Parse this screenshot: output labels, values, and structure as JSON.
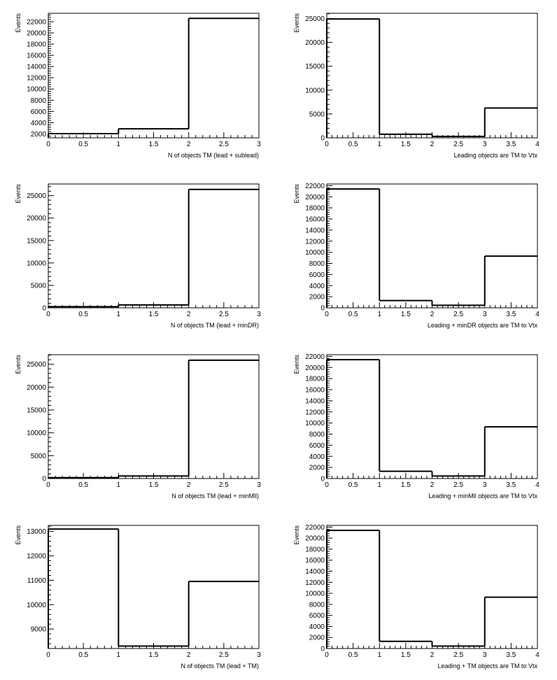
{
  "chart_data": [
    {
      "type": "histogram",
      "xlabel": "N of objects TM (lead + sublead)",
      "ylabel": "Events",
      "bins": [
        0,
        1,
        2,
        3
      ],
      "values": [
        2050,
        2900,
        22600
      ],
      "xlim": [
        0,
        3
      ],
      "ylim": [
        1300,
        23500
      ],
      "xticks": [
        "0",
        "0.5",
        "1",
        "1.5",
        "2",
        "2.5",
        "3"
      ],
      "yticks": [
        2000,
        4000,
        6000,
        8000,
        10000,
        12000,
        14000,
        16000,
        18000,
        20000,
        22000
      ],
      "grid": false,
      "legend": "none"
    },
    {
      "type": "histogram",
      "xlabel": "Leading objects are TM to Vtx",
      "ylabel": "Events",
      "bins": [
        0,
        1,
        2,
        3,
        4
      ],
      "values": [
        24900,
        750,
        300,
        6250
      ],
      "xlim": [
        0,
        4
      ],
      "ylim": [
        0,
        26100
      ],
      "xticks": [
        "0",
        "0.5",
        "1",
        "1.5",
        "2",
        "2.5",
        "3",
        "3.5",
        "4"
      ],
      "yticks": [
        0,
        5000,
        10000,
        15000,
        20000,
        25000
      ],
      "grid": false,
      "legend": "none"
    },
    {
      "type": "histogram",
      "xlabel": "N of objects TM (lead + minDR)",
      "ylabel": "Events",
      "bins": [
        0,
        1,
        2,
        3
      ],
      "values": [
        250,
        650,
        26400
      ],
      "xlim": [
        0,
        3
      ],
      "ylim": [
        0,
        27600
      ],
      "xticks": [
        "0",
        "0.5",
        "1",
        "1.5",
        "2",
        "2.5",
        "3"
      ],
      "yticks": [
        0,
        5000,
        10000,
        15000,
        20000,
        25000
      ],
      "grid": false,
      "legend": "none"
    },
    {
      "type": "histogram",
      "xlabel": "Leading + minDR objects are TM to Vtx",
      "ylabel": "Events",
      "bins": [
        0,
        1,
        2,
        3,
        4
      ],
      "values": [
        21400,
        1300,
        450,
        9300
      ],
      "xlim": [
        0,
        4
      ],
      "ylim": [
        0,
        22300
      ],
      "xticks": [
        "0",
        "0.5",
        "1",
        "1.5",
        "2",
        "2.5",
        "3",
        "3.5",
        "4"
      ],
      "yticks": [
        0,
        2000,
        4000,
        6000,
        8000,
        10000,
        12000,
        14000,
        16000,
        18000,
        20000,
        22000
      ],
      "grid": false,
      "legend": "none"
    },
    {
      "type": "histogram",
      "xlabel": "N of objects TM (lead + minMll)",
      "ylabel": "Events",
      "bins": [
        0,
        1,
        2,
        3
      ],
      "values": [
        200,
        550,
        25900
      ],
      "xlim": [
        0,
        3
      ],
      "ylim": [
        0,
        27100
      ],
      "xticks": [
        "0",
        "0.5",
        "1",
        "1.5",
        "2",
        "2.5",
        "3"
      ],
      "yticks": [
        0,
        5000,
        10000,
        15000,
        20000,
        25000
      ],
      "grid": false,
      "legend": "none"
    },
    {
      "type": "histogram",
      "xlabel": "Leading + minMll objects are TM to Vtx",
      "ylabel": "Events",
      "bins": [
        0,
        1,
        2,
        3,
        4
      ],
      "values": [
        21400,
        1300,
        450,
        9300
      ],
      "xlim": [
        0,
        4
      ],
      "ylim": [
        0,
        22300
      ],
      "xticks": [
        "0",
        "0.5",
        "1",
        "1.5",
        "2",
        "2.5",
        "3",
        "3.5",
        "4"
      ],
      "yticks": [
        0,
        2000,
        4000,
        6000,
        8000,
        10000,
        12000,
        14000,
        16000,
        18000,
        20000,
        22000
      ],
      "grid": false,
      "legend": "none"
    },
    {
      "type": "histogram",
      "xlabel": "N of objects TM (lead + TM)",
      "ylabel": "Events",
      "bins": [
        0,
        1,
        2,
        3
      ],
      "values": [
        13100,
        8300,
        10950
      ],
      "xlim": [
        0,
        3
      ],
      "ylim": [
        8200,
        13250
      ],
      "xticks": [
        "0",
        "0.5",
        "1",
        "1.5",
        "2",
        "2.5",
        "3"
      ],
      "yticks": [
        9000,
        10000,
        11000,
        12000,
        13000
      ],
      "grid": false,
      "legend": "none"
    },
    {
      "type": "histogram",
      "xlabel": "Leading + TM objects are TM to Vtx",
      "ylabel": "Events",
      "bins": [
        0,
        1,
        2,
        3,
        4
      ],
      "values": [
        21400,
        1300,
        450,
        9300
      ],
      "xlim": [
        0,
        4
      ],
      "ylim": [
        0,
        22300
      ],
      "xticks": [
        "0",
        "0.5",
        "1",
        "1.5",
        "2",
        "2.5",
        "3",
        "3.5",
        "4"
      ],
      "yticks": [
        0,
        2000,
        4000,
        6000,
        8000,
        10000,
        12000,
        14000,
        16000,
        18000,
        20000,
        22000
      ],
      "grid": false,
      "legend": "none"
    }
  ]
}
